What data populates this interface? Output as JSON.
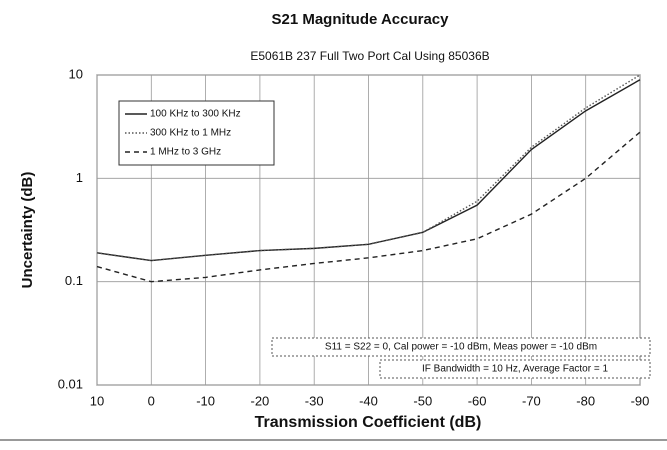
{
  "chart_data": {
    "type": "line",
    "title": "S21 Magnitude Accuracy",
    "subtitle": "E5061B 237 Full Two Port Cal Using 85036B",
    "xlabel": "Transmission Coefficient (dB)",
    "ylabel": "Uncertainty (dB)",
    "x": [
      10,
      0,
      -10,
      -20,
      -30,
      -40,
      -50,
      -60,
      -70,
      -80,
      -90
    ],
    "series": [
      {
        "name": "100 KHz to 300 KHz",
        "color": "#222222",
        "style": "solid",
        "values": [
          0.19,
          0.16,
          0.18,
          0.2,
          0.21,
          0.23,
          0.3,
          0.55,
          1.9,
          4.5,
          9
        ]
      },
      {
        "name": "300 KHz to 1 MHz",
        "color": "#555555",
        "style": "dotted",
        "values": [
          0.19,
          0.16,
          0.18,
          0.2,
          0.21,
          0.23,
          0.3,
          0.6,
          2,
          4.8,
          10
        ]
      },
      {
        "name": "1 MHz to 3 GHz",
        "color": "#222222",
        "style": "dashed",
        "values": [
          0.14,
          0.1,
          0.11,
          0.13,
          0.15,
          0.17,
          0.2,
          0.26,
          0.45,
          1,
          2.8
        ]
      }
    ],
    "xlim": [
      10,
      -90
    ],
    "xticks": [
      10,
      0,
      -10,
      -20,
      -30,
      -40,
      -50,
      -60,
      -70,
      -80,
      -90
    ],
    "ylim": [
      0.01,
      10
    ],
    "yticks": [
      0.01,
      0.1,
      1,
      10
    ],
    "log_y": true,
    "grid": true,
    "legend": "upper left",
    "annotations": [
      "S11 = S22 = 0, Cal power = -10 dBm, Meas power = -10 dBm",
      "IF Bandwidth = 10 Hz, Average Factor = 1"
    ]
  }
}
